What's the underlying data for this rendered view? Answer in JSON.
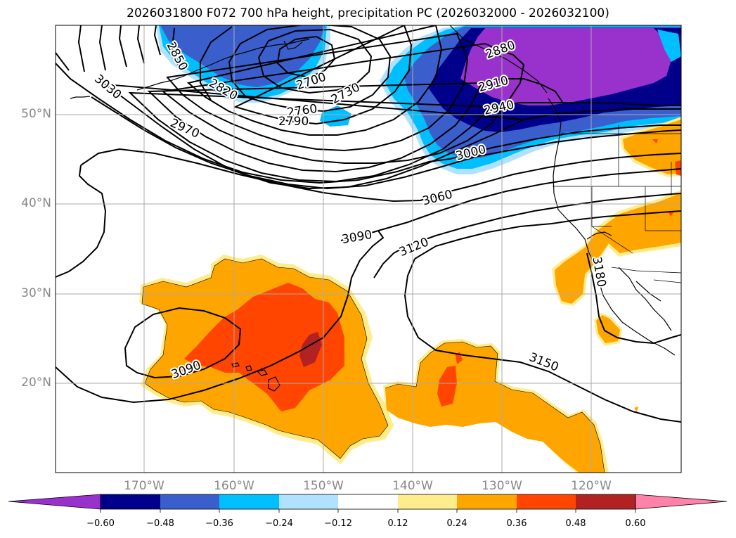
{
  "title": "2026031800 F072 700 hPa height, precipitation PC (2026032000 - 2026032100)",
  "lon_labels": [
    "170°W",
    "160°W",
    "150°W",
    "140°W",
    "130°W",
    "120°W"
  ],
  "lat_labels": [
    "50°N",
    "40°N",
    "30°N",
    "20°N"
  ],
  "contour_labels": [
    "2700",
    "2730",
    "2760",
    "2790",
    "2820",
    "2850",
    "2880",
    "2910",
    "2940",
    "2970",
    "3000",
    "3030",
    "3060",
    "3090",
    "3090",
    "3120",
    "3150",
    "3180"
  ],
  "colorbar": {
    "ticks": [
      "−0.60",
      "−0.48",
      "−0.36",
      "−0.24",
      "−0.12",
      "0.12",
      "0.24",
      "0.36",
      "0.48",
      "0.60"
    ],
    "colors": [
      "#9932cc",
      "#00008b",
      "#3a5fcd",
      "#00bfff",
      "#b0e2ff",
      "#ffffff",
      "#ffec8b",
      "#ffa500",
      "#ff4500",
      "#b22222",
      "#ff82ab"
    ]
  }
}
